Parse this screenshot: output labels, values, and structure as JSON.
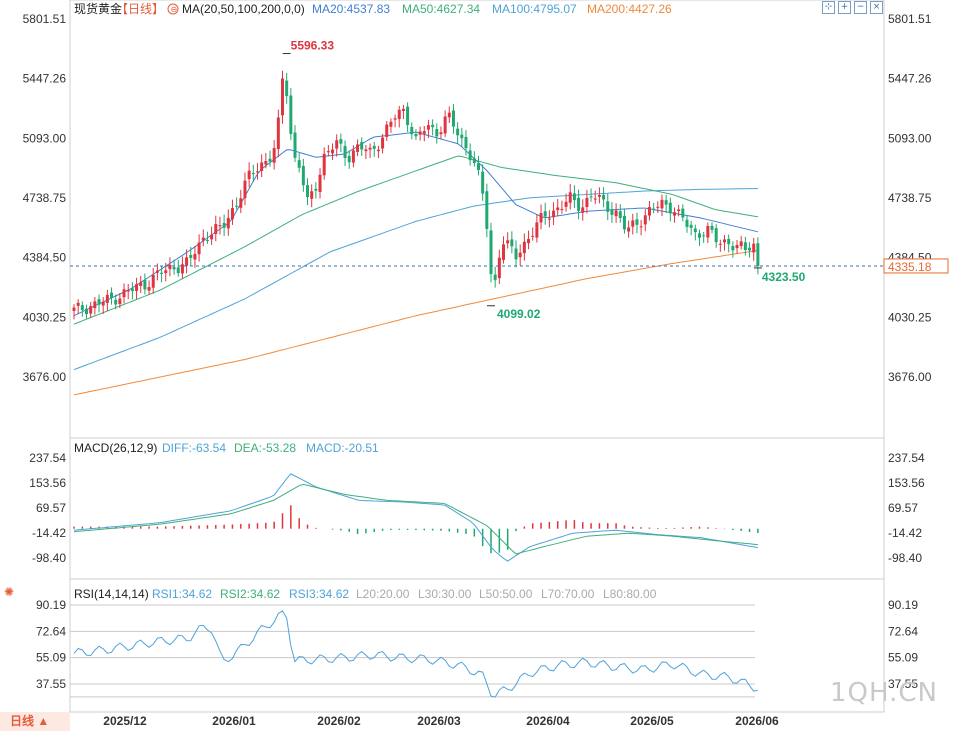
{
  "header": {
    "instrument": "现货黄金",
    "period_bracket": "【日线】",
    "ma_params": "MA(20,50,100,200,0,0)",
    "ma_values": [
      {
        "text": "MA20:4537.83",
        "color": "#3d7fd6"
      },
      {
        "text": "MA50:4627.34",
        "color": "#3db07a"
      },
      {
        "text": "MA100:4795.07",
        "color": "#4fa3d8"
      },
      {
        "text": "MA200:4427.26",
        "color": "#f08a3c"
      }
    ]
  },
  "toolbar": {
    "icons": [
      "expand-icon",
      "zoom-in-icon",
      "zoom-out-icon",
      "close-icon"
    ],
    "glyphs": [
      "⊹",
      "+",
      "−",
      "×"
    ]
  },
  "colors": {
    "up": "#e0343e",
    "down": "#1fa870",
    "grid": "#dcdcdc",
    "axis_text": "#333333",
    "current_price": "#e86a2e"
  },
  "chart_data": [
    {
      "type": "candlestick",
      "panel": "price",
      "y_ticks": [
        5801.51,
        5447.26,
        5093.0,
        4738.75,
        4384.5,
        4030.25,
        3676.0
      ],
      "x_ticks": [
        "2025/12",
        "2026/01",
        "2026/02",
        "2026/03",
        "2026/04",
        "2026/05",
        "2026/06"
      ],
      "annotations": [
        {
          "text": "5596.33",
          "kind": "high",
          "value": 5596.33
        },
        {
          "text": "4099.02",
          "kind": "low",
          "value": 4099.02
        },
        {
          "text": "4323.50",
          "kind": "last-low",
          "value": 4323.5
        }
      ],
      "current_price": {
        "text": "4335.18",
        "value": 4335.18
      },
      "series": [
        {
          "name": "MA20",
          "color": "#3d7fd6"
        },
        {
          "name": "MA50",
          "color": "#3db07a"
        },
        {
          "name": "MA100",
          "color": "#4fa3d8"
        },
        {
          "name": "MA200",
          "color": "#f08a3c"
        }
      ]
    },
    {
      "type": "bar",
      "panel": "macd",
      "title": "MACD(26,12,9)",
      "legend": [
        {
          "text": "DIFF:-63.54",
          "color": "#4fa3d8"
        },
        {
          "text": "DEA:-53.28",
          "color": "#3db07a"
        },
        {
          "text": "MACD:-20.51",
          "color": "#4fa3d8"
        }
      ],
      "y_ticks": [
        237.54,
        153.56,
        69.57,
        -14.42,
        -98.4
      ]
    },
    {
      "type": "line",
      "panel": "rsi",
      "title": "RSI(14,14,14)",
      "legend": [
        {
          "text": "RSI1:34.62",
          "color": "#4fa3d8"
        },
        {
          "text": "RSI2:34.62",
          "color": "#3db07a"
        },
        {
          "text": "RSI3:34.62",
          "color": "#4fa3d8"
        },
        {
          "text": "L20:20.00",
          "color": "#aaaaaa"
        },
        {
          "text": "L30:30.00",
          "color": "#aaaaaa"
        },
        {
          "text": "L50:50.00",
          "color": "#aaaaaa"
        },
        {
          "text": "L70:70.00",
          "color": "#aaaaaa"
        },
        {
          "text": "L80:80.00",
          "color": "#aaaaaa"
        }
      ],
      "y_ticks": [
        90.19,
        72.64,
        55.09,
        37.55
      ]
    }
  ],
  "footer": {
    "period_label": "日线",
    "period_arrow": "▲"
  },
  "watermark": "1QH.CN"
}
